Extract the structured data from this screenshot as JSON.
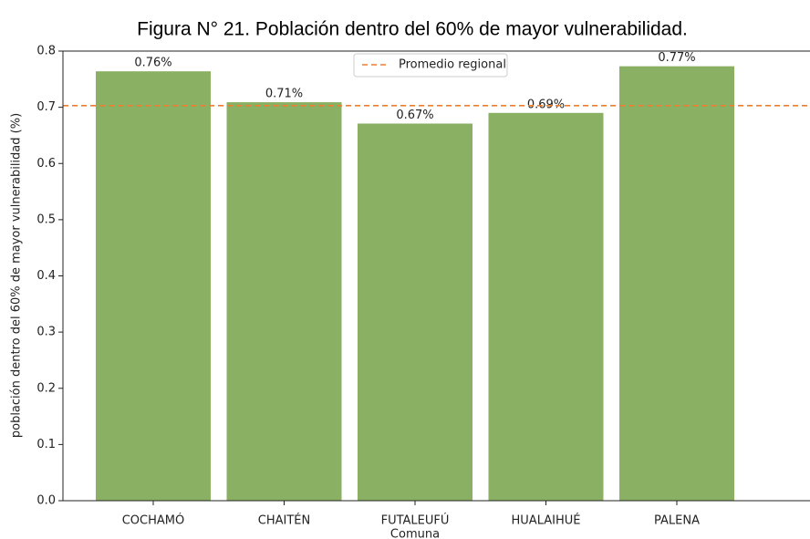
{
  "chart_data": {
    "type": "bar",
    "title": "Figura N° 21. Población dentro del 60% de mayor vulnerabilidad.",
    "x_label": "Comuna",
    "y_label": "población dentro del 60% de mayor vulnerabilidad (%)",
    "categories": [
      "COCHAMÓ",
      "CHAITÉN",
      "FUTALEUFÚ",
      "HUALAIHUÉ",
      "PALENA"
    ],
    "values": [
      0.764,
      0.709,
      0.671,
      0.69,
      0.773
    ],
    "value_labels": [
      "0.76%",
      "0.71%",
      "0.67%",
      "0.69%",
      "0.77%"
    ],
    "color": "#8ab063",
    "reference": {
      "name": "Promedio regional",
      "value": 0.703,
      "color": "#ed7d31"
    },
    "ylim": [
      0,
      0.8
    ],
    "yticks": [
      {
        "value": 0,
        "label": "0.0"
      },
      0.1,
      0.2,
      0.3,
      0.4,
      0.5,
      0.6,
      0.7,
      0.8
    ],
    "legend": "upper center"
  }
}
